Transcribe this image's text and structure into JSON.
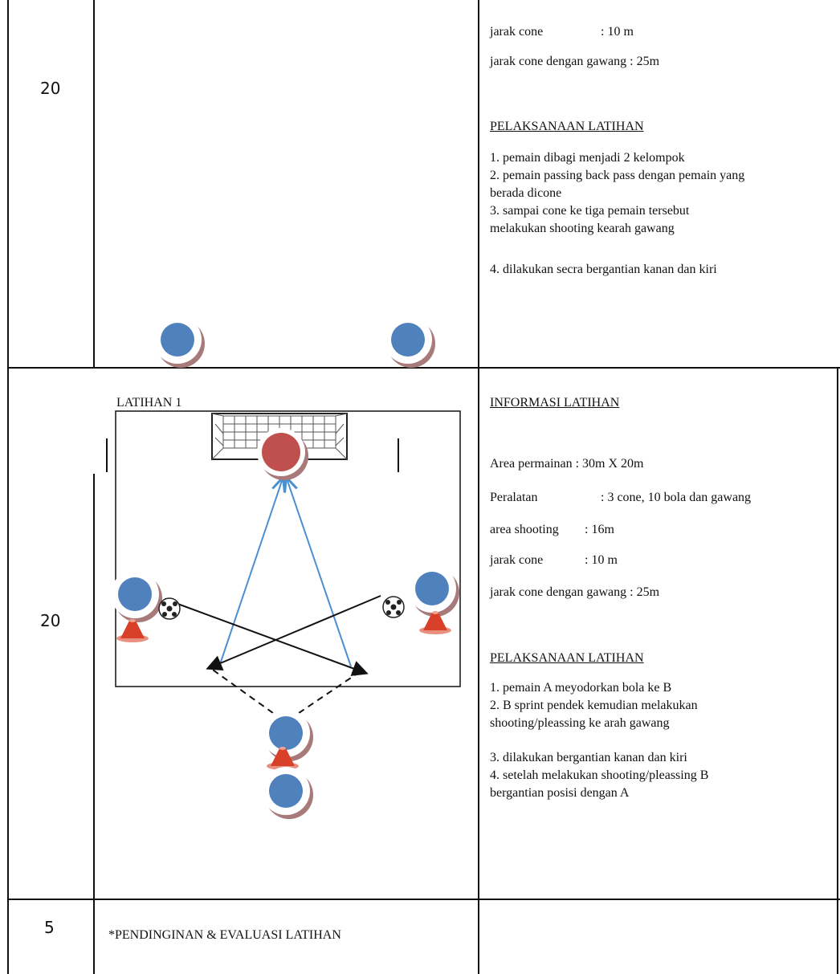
{
  "rows": [
    {
      "duration": "20",
      "info": [
        {
          "label": "jarak cone",
          "value": ": 10 m"
        },
        {
          "label": "jarak cone dengan gawang : 25m"
        }
      ],
      "heading": "PELAKSANAAN LATIHAN",
      "steps": [
        "1. pemain dibagi menjadi 2 kelompok",
        "2. pemain passing back pass dengan pemain yang",
        "berada dicone",
        "3. sampai cone ke tiga pemain tersebut",
        "melakukan shooting kearah gawang",
        "4. dilakukan secra bergantian kanan dan kiri"
      ]
    },
    {
      "duration": "20",
      "diagram_title": "LATIHAN 1",
      "info_heading": "INFORMASI LATIHAN",
      "info": [
        {
          "label": "Area permainan : 30m X 20m"
        },
        {
          "label": "Peralatan",
          "value": ": 3 cone, 10 bola  dan gawang"
        },
        {
          "label": "area shooting",
          "value": ": 16m"
        },
        {
          "label": "jarak cone",
          "value": ": 10 m"
        },
        {
          "label": "jarak cone dengan gawang : 25m"
        }
      ],
      "heading": "PELAKSANAAN LATIHAN",
      "steps": [
        "1. pemain A meyodorkan bola ke B",
        "2. B sprint pendek kemudian melakukan",
        "shooting/pleassing ke arah gawang",
        "3. dilakukan bergantian kanan dan kiri",
        "4. setelah melakukan shooting/pleassing B",
        "bergantian posisi dengan A"
      ]
    },
    {
      "duration": "5",
      "activity": "*PENDINGINAN & EVALUASI LATIHAN"
    }
  ]
}
